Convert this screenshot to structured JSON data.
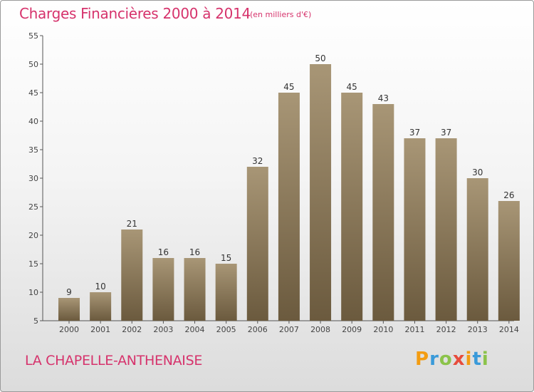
{
  "title": "Charges Financières 2000 à 2014",
  "subtitle": "(en milliers d'€)",
  "commune": "LA CHAPELLE-ANTHENAISE",
  "logo": {
    "letters": [
      "P",
      "r",
      "o",
      "x",
      "i",
      "t",
      "i"
    ],
    "colors": [
      "#f39c12",
      "#3a9ad9",
      "#8bc34a",
      "#e74c3c",
      "#f39c12",
      "#3a9ad9",
      "#8bc34a"
    ]
  },
  "colors": {
    "title": "#d6336c",
    "bar_top": "#a89676",
    "bar_bottom": "#6b5a3e"
  },
  "chart_data": {
    "type": "bar",
    "categories": [
      "2000",
      "2001",
      "2002",
      "2003",
      "2004",
      "2005",
      "2006",
      "2007",
      "2008",
      "2009",
      "2010",
      "2011",
      "2012",
      "2013",
      "2014"
    ],
    "values": [
      9,
      10,
      21,
      16,
      16,
      15,
      32,
      45,
      50,
      45,
      43,
      37,
      37,
      30,
      26
    ],
    "title": "Charges Financières 2000 à 2014",
    "xlabel": "",
    "ylabel": "",
    "ylim": [
      5,
      55
    ],
    "yticks": [
      5,
      10,
      15,
      20,
      25,
      30,
      35,
      40,
      45,
      50,
      55
    ],
    "grid": false,
    "data_labels": true
  }
}
